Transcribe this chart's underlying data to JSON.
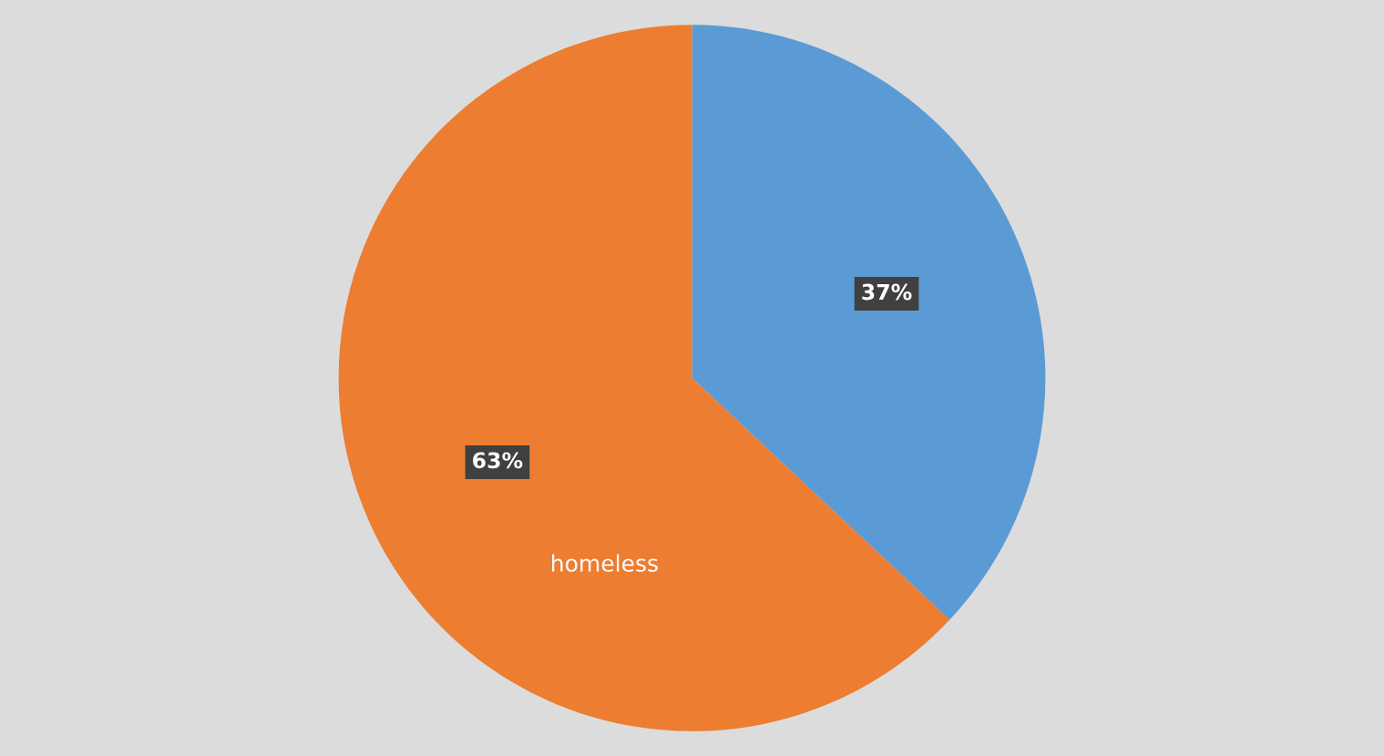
{
  "chart_data": {
    "type": "pie",
    "categories": [
      null,
      "homeless"
    ],
    "values": [
      37,
      63
    ],
    "colors": [
      "#5b9bd5",
      "#ed7d31"
    ],
    "value_labels": [
      "37%",
      "63%"
    ],
    "legend": false
  }
}
